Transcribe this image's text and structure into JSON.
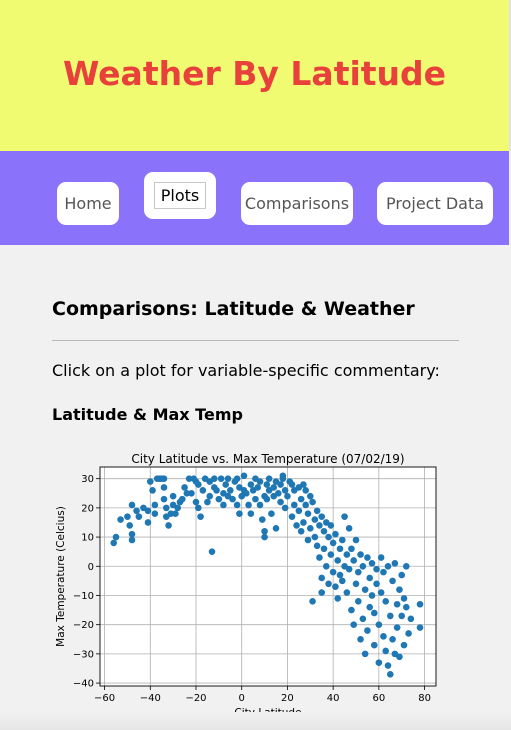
{
  "header": {
    "title": "Weather By Latitude"
  },
  "nav": {
    "items": [
      {
        "label": "Home"
      },
      {
        "label": "Plots"
      },
      {
        "label": "Comparisons"
      },
      {
        "label": "Project Data"
      }
    ]
  },
  "main": {
    "title": "Comparisons: Latitude & Weather",
    "intro": "Click on a plot for variable-specific commentary:",
    "plot_heading": "Latitude & Max Temp"
  },
  "colors": {
    "header_bg": "#f1fb72",
    "title": "#e8403a",
    "nav_bg": "#8a72fb",
    "point": "#1f77b4"
  },
  "chart_data": {
    "type": "scatter",
    "title": "City Latitude vs. Max Temperature (07/02/19)",
    "xlabel": "City Latitude",
    "ylabel": "Max Temperature (Celcius)",
    "xlim": [
      -62,
      85
    ],
    "ylim": [
      -41,
      34
    ],
    "xticks": [
      -60,
      -40,
      -20,
      0,
      20,
      40,
      60,
      80
    ],
    "yticks": [
      -40,
      -30,
      -20,
      -10,
      0,
      10,
      20,
      30
    ],
    "grid": true,
    "points": [
      [
        -56,
        8
      ],
      [
        -55,
        10
      ],
      [
        -53,
        16
      ],
      [
        -50,
        17
      ],
      [
        -49,
        14
      ],
      [
        -48,
        9
      ],
      [
        -48,
        11
      ],
      [
        -48,
        21
      ],
      [
        -46,
        19
      ],
      [
        -45,
        17
      ],
      [
        -43,
        20
      ],
      [
        -41,
        19
      ],
      [
        -41,
        15
      ],
      [
        -40,
        29
      ],
      [
        -39,
        26
      ],
      [
        -38,
        21
      ],
      [
        -38,
        18
      ],
      [
        -37,
        30
      ],
      [
        -36,
        30
      ],
      [
        -35,
        30
      ],
      [
        -34,
        30
      ],
      [
        -34,
        27
      ],
      [
        -34,
        23
      ],
      [
        -33,
        20
      ],
      [
        -33,
        17
      ],
      [
        -32,
        14
      ],
      [
        -31,
        18
      ],
      [
        -30,
        24
      ],
      [
        -30,
        21
      ],
      [
        -29,
        18
      ],
      [
        -28,
        20
      ],
      [
        -27,
        22
      ],
      [
        -26,
        23
      ],
      [
        -25,
        27
      ],
      [
        -24,
        25
      ],
      [
        -23,
        30
      ],
      [
        -22,
        25
      ],
      [
        -21,
        30
      ],
      [
        -20,
        29
      ],
      [
        -20,
        22
      ],
      [
        -19,
        28
      ],
      [
        -19,
        20
      ],
      [
        -18,
        17
      ],
      [
        -17,
        26
      ],
      [
        -16,
        30
      ],
      [
        -15,
        22
      ],
      [
        -14,
        29
      ],
      [
        -14,
        24
      ],
      [
        -13,
        5
      ],
      [
        -12,
        30
      ],
      [
        -12,
        27
      ],
      [
        -11,
        26
      ],
      [
        -10,
        23
      ],
      [
        -9,
        30
      ],
      [
        -8,
        21
      ],
      [
        -8,
        25
      ],
      [
        -7,
        28
      ],
      [
        -6,
        24
      ],
      [
        -6,
        30
      ],
      [
        -5,
        26
      ],
      [
        -4,
        23
      ],
      [
        -3,
        29
      ],
      [
        -2,
        21
      ],
      [
        -2,
        30
      ],
      [
        -1,
        18
      ],
      [
        -1,
        27
      ],
      [
        0,
        24
      ],
      [
        1,
        26
      ],
      [
        1,
        31
      ],
      [
        2,
        25
      ],
      [
        3,
        21
      ],
      [
        4,
        28
      ],
      [
        4,
        18
      ],
      [
        5,
        26
      ],
      [
        6,
        23
      ],
      [
        6,
        30
      ],
      [
        7,
        27
      ],
      [
        8,
        29
      ],
      [
        8,
        21
      ],
      [
        9,
        16
      ],
      [
        10,
        24
      ],
      [
        10,
        12
      ],
      [
        10,
        10
      ],
      [
        11,
        28
      ],
      [
        11,
        23
      ],
      [
        12,
        30
      ],
      [
        12,
        26
      ],
      [
        13,
        18
      ],
      [
        14,
        27
      ],
      [
        14,
        24
      ],
      [
        15,
        29
      ],
      [
        15,
        13
      ],
      [
        16,
        25
      ],
      [
        17,
        28
      ],
      [
        17,
        22
      ],
      [
        18,
        30
      ],
      [
        18,
        31
      ],
      [
        19,
        26
      ],
      [
        19,
        20
      ],
      [
        20,
        24
      ],
      [
        21,
        29
      ],
      [
        22,
        28
      ],
      [
        22,
        17
      ],
      [
        23,
        26
      ],
      [
        23,
        21
      ],
      [
        24,
        14
      ],
      [
        25,
        27
      ],
      [
        25,
        19
      ],
      [
        26,
        23
      ],
      [
        26,
        12
      ],
      [
        27,
        28
      ],
      [
        27,
        15
      ],
      [
        28,
        26
      ],
      [
        28,
        21
      ],
      [
        29,
        18
      ],
      [
        29,
        9
      ],
      [
        30,
        24
      ],
      [
        30,
        13
      ],
      [
        31,
        -12
      ],
      [
        31,
        22
      ],
      [
        32,
        16
      ],
      [
        32,
        10
      ],
      [
        33,
        19
      ],
      [
        33,
        7
      ],
      [
        34,
        14
      ],
      [
        34,
        3
      ],
      [
        35,
        17
      ],
      [
        35,
        -4
      ],
      [
        35,
        -9
      ],
      [
        36,
        12
      ],
      [
        36,
        6
      ],
      [
        37,
        15
      ],
      [
        37,
        0
      ],
      [
        38,
        -6
      ],
      [
        38,
        10
      ],
      [
        39,
        4
      ],
      [
        39,
        14
      ],
      [
        40,
        -2
      ],
      [
        40,
        8
      ],
      [
        41,
        -7
      ],
      [
        41,
        11
      ],
      [
        42,
        2
      ],
      [
        42,
        -11
      ],
      [
        43,
        -3
      ],
      [
        43,
        6
      ],
      [
        44,
        9
      ],
      [
        44,
        -5
      ],
      [
        45,
        0
      ],
      [
        45,
        17
      ],
      [
        46,
        -9
      ],
      [
        46,
        4
      ],
      [
        47,
        -1
      ],
      [
        47,
        13
      ],
      [
        48,
        -15
      ],
      [
        48,
        6
      ],
      [
        49,
        -20
      ],
      [
        49,
        2
      ],
      [
        50,
        -6
      ],
      [
        50,
        9
      ],
      [
        51,
        -12
      ],
      [
        51,
        -2
      ],
      [
        52,
        -25
      ],
      [
        52,
        4
      ],
      [
        53,
        -18
      ],
      [
        53,
        0
      ],
      [
        54,
        -8
      ],
      [
        54,
        -30
      ],
      [
        55,
        -22
      ],
      [
        55,
        3
      ],
      [
        56,
        -4
      ],
      [
        56,
        -14
      ],
      [
        57,
        1
      ],
      [
        57,
        -10
      ],
      [
        58,
        -27
      ],
      [
        58,
        -16
      ],
      [
        59,
        -6
      ],
      [
        59,
        -1
      ],
      [
        60,
        -20
      ],
      [
        60,
        -33
      ],
      [
        61,
        -9
      ],
      [
        61,
        3
      ],
      [
        62,
        -24
      ],
      [
        62,
        -2
      ],
      [
        63,
        -29
      ],
      [
        63,
        -12
      ],
      [
        64,
        -34
      ],
      [
        64,
        0
      ],
      [
        65,
        -17
      ],
      [
        65,
        -37
      ],
      [
        66,
        -5
      ],
      [
        66,
        -25
      ],
      [
        67,
        -30
      ],
      [
        67,
        1
      ],
      [
        68,
        -21
      ],
      [
        68,
        -13
      ],
      [
        69,
        -8
      ],
      [
        69,
        -31
      ],
      [
        70,
        -17
      ],
      [
        70,
        -3
      ],
      [
        71,
        -27
      ],
      [
        71,
        -11
      ],
      [
        72,
        -14
      ],
      [
        72,
        0
      ],
      [
        73,
        -23
      ],
      [
        74,
        -18
      ],
      [
        78,
        -13
      ],
      [
        78,
        -21
      ]
    ]
  }
}
